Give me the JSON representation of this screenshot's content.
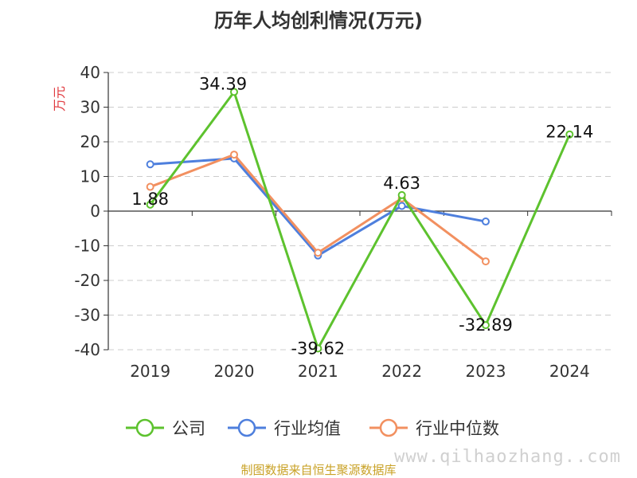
{
  "chart_data": {
    "type": "line",
    "title": "历年人均创利情况(万元)",
    "ylabel": "万元",
    "xlabel": "",
    "categories": [
      "2019",
      "2020",
      "2021",
      "2022",
      "2023",
      "2024"
    ],
    "ylim": [
      -40,
      40
    ],
    "yticks": [
      40,
      30,
      20,
      10,
      0,
      -10,
      -20,
      -30,
      -40
    ],
    "grid": true,
    "legend_position": "bottom",
    "series": [
      {
        "name": "公司",
        "color": "#5dc22e",
        "values": [
          1.88,
          34.39,
          -39.62,
          4.63,
          -32.89,
          22.14
        ],
        "labels": [
          "1.88",
          "34.39",
          "-39.62",
          "4.63",
          "-32.89",
          "22.14"
        ]
      },
      {
        "name": "行业均值",
        "color": "#4e7fdd",
        "values": [
          13.5,
          15.2,
          -12.8,
          1.5,
          -3.0,
          null
        ]
      },
      {
        "name": "行业中位数",
        "color": "#f29060",
        "values": [
          7.0,
          16.3,
          -12.0,
          3.7,
          -14.5,
          null
        ]
      }
    ]
  },
  "footer": {
    "source": "制图数据来自恒生聚源数据库",
    "watermark": "www.qilhaozhang..com"
  }
}
